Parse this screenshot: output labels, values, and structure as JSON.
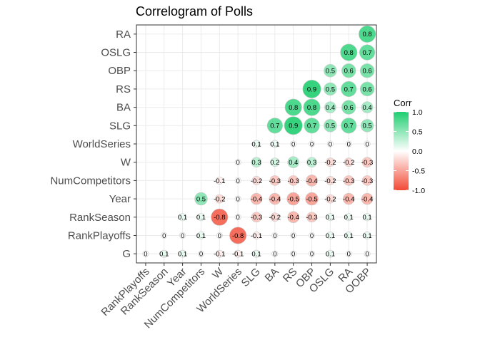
{
  "chart_data": {
    "type": "heatmap",
    "subtype": "correlogram",
    "title": "Correlogram of Polls",
    "variables": [
      "G",
      "RankPlayoffs",
      "RankSeason",
      "Year",
      "NumCompetitors",
      "W",
      "WorldSeries",
      "SLG",
      "BA",
      "RS",
      "OBP",
      "OSLG",
      "RA",
      "OOBP"
    ],
    "x_categories": [
      "RankPlayoffs",
      "RankSeason",
      "Year",
      "NumCompetitors",
      "W",
      "WorldSeries",
      "SLG",
      "BA",
      "RS",
      "OBP",
      "OSLG",
      "RA",
      "OOBP"
    ],
    "y_categories": [
      "G",
      "RankPlayoffs",
      "RankSeason",
      "Year",
      "NumCompetitors",
      "W",
      "WorldSeries",
      "SLG",
      "BA",
      "RS",
      "OBP",
      "OSLG",
      "RA"
    ],
    "matrix_rows_y_cols_x": [
      [
        0,
        0.1,
        0.1,
        0,
        -0.1,
        -0.1,
        0.1,
        0,
        0,
        0,
        0.1,
        0,
        0
      ],
      [
        null,
        0,
        0,
        0.1,
        0,
        -0.8,
        -0.1,
        0,
        0,
        0,
        0.1,
        0.1,
        0.1
      ],
      [
        null,
        null,
        0.1,
        0.1,
        -0.8,
        0,
        -0.3,
        -0.2,
        -0.4,
        -0.3,
        0.1,
        0.1,
        0.1
      ],
      [
        null,
        null,
        null,
        0.5,
        -0.2,
        0,
        -0.4,
        -0.4,
        -0.5,
        -0.5,
        -0.2,
        -0.4,
        -0.4
      ],
      [
        null,
        null,
        null,
        null,
        -0.1,
        0,
        -0.2,
        -0.3,
        -0.3,
        -0.4,
        -0.2,
        -0.3,
        -0.3
      ],
      [
        null,
        null,
        null,
        null,
        null,
        0,
        0.3,
        0.2,
        0.4,
        0.3,
        -0.2,
        -0.2,
        -0.3
      ],
      [
        null,
        null,
        null,
        null,
        null,
        null,
        0.1,
        0.1,
        0,
        0,
        0,
        0,
        0
      ],
      [
        null,
        null,
        null,
        null,
        null,
        null,
        null,
        0.7,
        0.9,
        0.7,
        0.5,
        0.7,
        0.5
      ],
      [
        null,
        null,
        null,
        null,
        null,
        null,
        null,
        null,
        0.8,
        0.8,
        0.4,
        0.6,
        0.4
      ],
      [
        null,
        null,
        null,
        null,
        null,
        null,
        null,
        null,
        null,
        0.9,
        0.5,
        0.7,
        0.6
      ],
      [
        null,
        null,
        null,
        null,
        null,
        null,
        null,
        null,
        null,
        null,
        0.5,
        0.6,
        0.6
      ],
      [
        null,
        null,
        null,
        null,
        null,
        null,
        null,
        null,
        null,
        null,
        null,
        0.8,
        0.7
      ],
      [
        null,
        null,
        null,
        null,
        null,
        null,
        null,
        null,
        null,
        null,
        null,
        null,
        0.8
      ]
    ],
    "color_scale": {
      "low": "#f24a35",
      "mid": "#ffffff",
      "high": "#1fce70",
      "limits": [
        -1,
        1
      ]
    },
    "size_encodes": "absolute correlation",
    "grid": true,
    "legend": {
      "title": "Corr",
      "position": "right",
      "ticks": [
        "1.0",
        "0.5",
        "0.0",
        "-0.5",
        "-1.0"
      ],
      "tick_values": [
        1.0,
        0.5,
        0.0,
        -0.5,
        -1.0
      ]
    }
  }
}
